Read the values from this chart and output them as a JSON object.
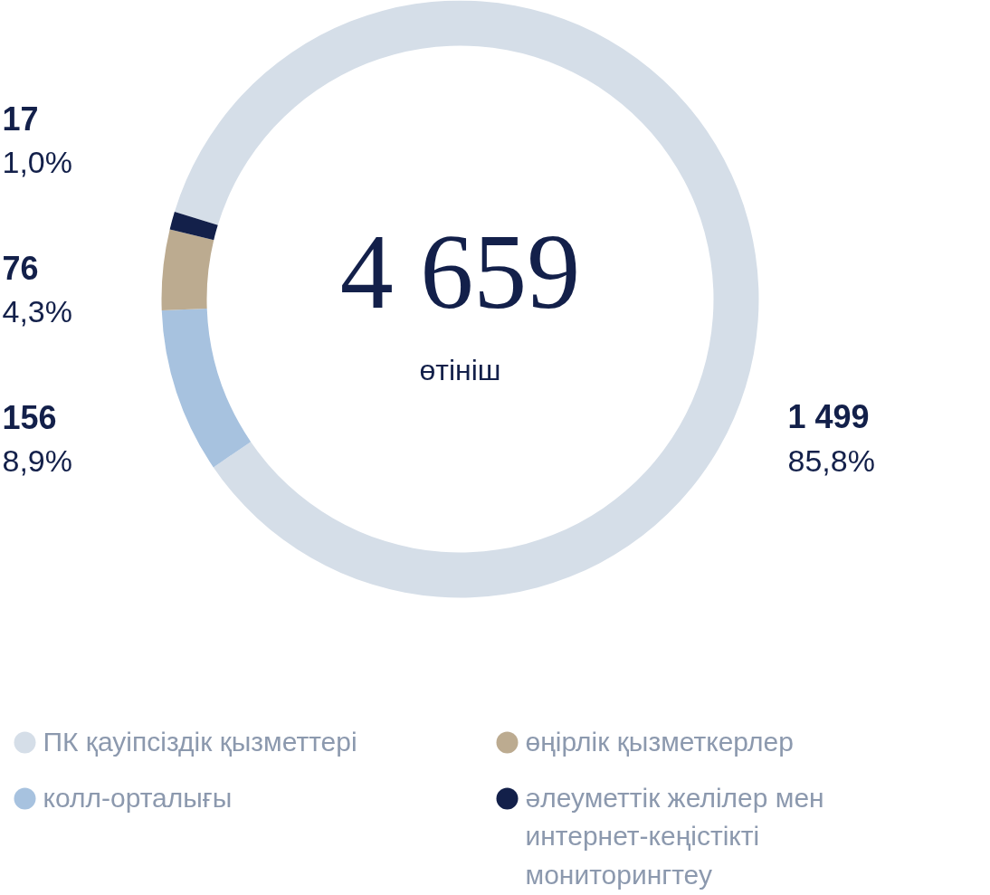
{
  "chart_data": {
    "type": "donut",
    "title": "4 659",
    "subtitle": "өтініш",
    "categories": [
      "ПК қауіпсіздік қызметтері",
      "колл-орталығы",
      "өңірлік қызметкерлер",
      "әлеуметтік желілер мен интернет-кеңістікті мониторингтеу"
    ],
    "values": [
      1499,
      156,
      76,
      17
    ],
    "colors": [
      "#d5dee8",
      "#a7c2df",
      "#bcab90",
      "#13204a"
    ],
    "value_labels": [
      "1 499\n85,8%",
      "156\n8,9%",
      "76\n4,3%",
      "17\n1,0%"
    ],
    "legend": "bottom"
  }
}
